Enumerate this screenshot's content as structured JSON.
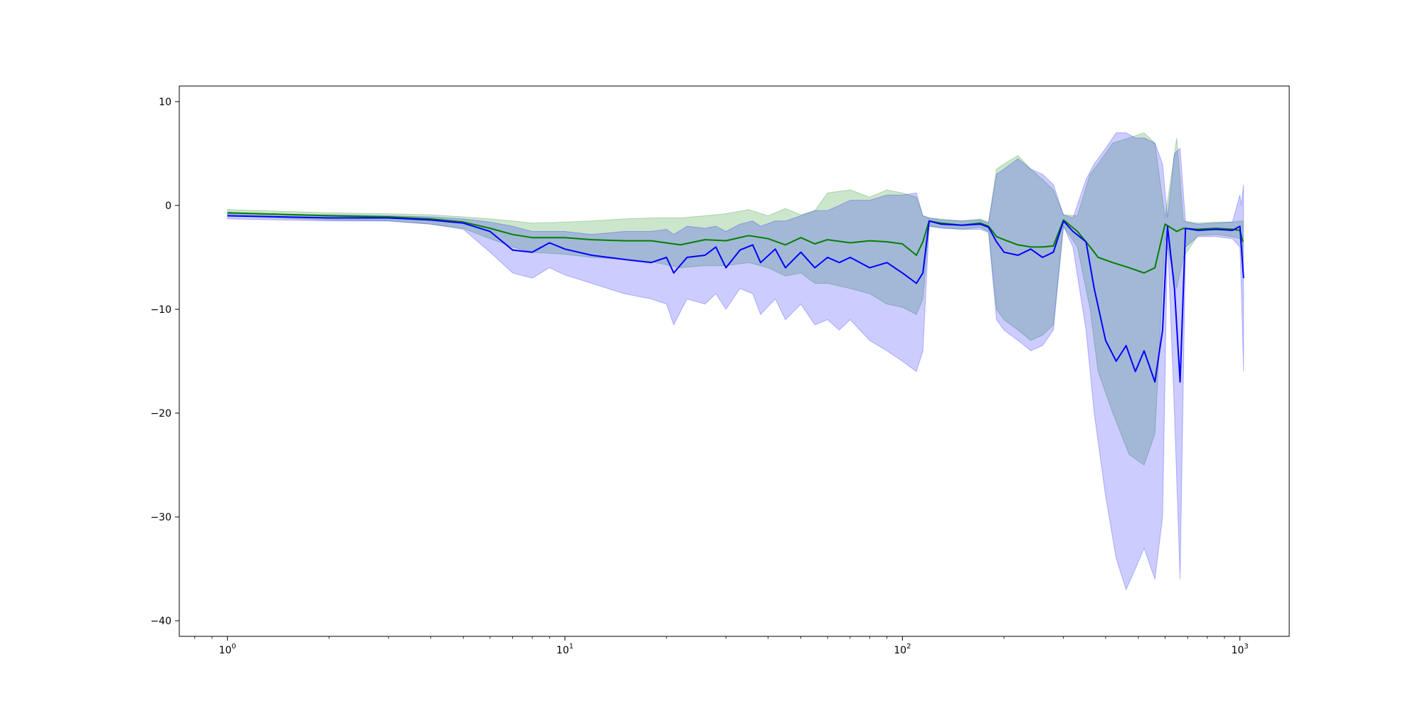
{
  "chart_data": {
    "type": "line",
    "title": "",
    "xlabel": "",
    "ylabel": "",
    "xscale": "log",
    "xlim": [
      0.72,
      1400
    ],
    "ylim": [
      -41.5,
      11.5
    ],
    "grid": false,
    "legend": "none",
    "x_ticks": [
      {
        "value": 1,
        "base": "10",
        "exp": "0"
      },
      {
        "value": 10,
        "base": "10",
        "exp": "1"
      },
      {
        "value": 100,
        "base": "10",
        "exp": "2"
      },
      {
        "value": 1000,
        "base": "10",
        "exp": "3"
      }
    ],
    "y_ticks": [
      10,
      0,
      -10,
      -20,
      -30,
      -40
    ],
    "y_tick_labels": [
      "10",
      "0",
      "−10",
      "−20",
      "−30",
      "−40"
    ],
    "series": [
      {
        "color": "#008000",
        "band_color": "#008000",
        "points": [
          [
            1,
            -0.7,
            -1.0,
            -0.4
          ],
          [
            2,
            -1.0,
            -1.4,
            -0.7
          ],
          [
            3,
            -1.1,
            -1.5,
            -0.8
          ],
          [
            4,
            -1.3,
            -1.8,
            -0.9
          ],
          [
            5,
            -1.6,
            -2.2,
            -1.1
          ],
          [
            6,
            -2.2,
            -3.2,
            -1.3
          ],
          [
            7,
            -2.8,
            -4.0,
            -1.5
          ],
          [
            8,
            -3.1,
            -4.5,
            -1.7
          ],
          [
            10,
            -3.1,
            -4.7,
            -1.6
          ],
          [
            12,
            -3.3,
            -5.0,
            -1.5
          ],
          [
            15,
            -3.4,
            -5.2,
            -1.3
          ],
          [
            18,
            -3.4,
            -5.4,
            -1.2
          ],
          [
            22,
            -3.8,
            -6.0,
            -1.2
          ],
          [
            26,
            -3.3,
            -5.8,
            -1.0
          ],
          [
            30,
            -3.4,
            -5.8,
            -0.8
          ],
          [
            35,
            -2.9,
            -5.5,
            -0.4
          ],
          [
            40,
            -3.2,
            -6.0,
            -1.0
          ],
          [
            45,
            -3.8,
            -6.8,
            -0.3
          ],
          [
            50,
            -3.1,
            -6.5,
            -0.9
          ],
          [
            55,
            -3.7,
            -7.5,
            -0.5
          ],
          [
            60,
            -3.3,
            -7.5,
            1.2
          ],
          [
            70,
            -3.6,
            -8.0,
            1.5
          ],
          [
            80,
            -3.4,
            -8.5,
            0.8
          ],
          [
            90,
            -3.5,
            -9.5,
            1.5
          ],
          [
            100,
            -3.7,
            -9.8,
            1.2
          ],
          [
            110,
            -4.8,
            -10.5,
            0.8
          ],
          [
            115,
            -3.5,
            -9.0,
            -1.0
          ],
          [
            120,
            -1.5,
            -2.0,
            -1.2
          ],
          [
            130,
            -1.7,
            -2.1,
            -1.3
          ],
          [
            150,
            -1.9,
            -2.3,
            -1.5
          ],
          [
            170,
            -1.7,
            -2.1,
            -1.3
          ],
          [
            180,
            -2.0,
            -2.5,
            -1.6
          ],
          [
            190,
            -3.0,
            -10.0,
            3.5
          ],
          [
            200,
            -3.3,
            -11.0,
            4.0
          ],
          [
            220,
            -3.8,
            -12.0,
            4.8
          ],
          [
            240,
            -4.0,
            -13.0,
            3.5
          ],
          [
            260,
            -4.0,
            -12.5,
            2.5
          ],
          [
            280,
            -3.9,
            -11.5,
            1.5
          ],
          [
            300,
            -1.4,
            -2.0,
            -0.9
          ],
          [
            330,
            -2.5,
            -4.0,
            -1.0
          ],
          [
            360,
            -4.0,
            -10.0,
            3.0
          ],
          [
            380,
            -5.0,
            -16.0,
            4.0
          ],
          [
            420,
            -5.5,
            -20.0,
            6.0
          ],
          [
            470,
            -6.0,
            -24.0,
            6.5
          ],
          [
            520,
            -6.5,
            -25.0,
            7.0
          ],
          [
            560,
            -6.0,
            -22.0,
            6.0
          ],
          [
            600,
            -1.8,
            -3.0,
            -1.2
          ],
          [
            650,
            -2.5,
            -8.0,
            6.5
          ],
          [
            680,
            -2.2,
            -5.0,
            -1.5
          ],
          [
            750,
            -2.3,
            -2.9,
            -1.7
          ],
          [
            850,
            -2.2,
            -2.8,
            -1.6
          ],
          [
            950,
            -2.3,
            -3.0,
            -1.6
          ],
          [
            1000,
            -2.4,
            -3.2,
            -1.5
          ],
          [
            1020,
            -3.5,
            -6.0,
            -1.5
          ]
        ]
      },
      {
        "color": "#0000ff",
        "band_color": "#0000ff",
        "points": [
          [
            1,
            -1.0,
            -1.3,
            -0.8
          ],
          [
            2,
            -1.2,
            -1.5,
            -0.9
          ],
          [
            3,
            -1.2,
            -1.5,
            -1.0
          ],
          [
            4,
            -1.4,
            -1.8,
            -1.1
          ],
          [
            5,
            -1.7,
            -2.3,
            -1.3
          ],
          [
            6,
            -2.5,
            -4.5,
            -1.6
          ],
          [
            7,
            -4.3,
            -6.5,
            -2.0
          ],
          [
            8,
            -4.5,
            -7.0,
            -2.5
          ],
          [
            9,
            -3.6,
            -6.0,
            -2.5
          ],
          [
            10,
            -4.2,
            -6.7,
            -2.5
          ],
          [
            12,
            -4.8,
            -7.5,
            -2.8
          ],
          [
            15,
            -5.2,
            -8.5,
            -2.5
          ],
          [
            18,
            -5.5,
            -9.0,
            -2.5
          ],
          [
            20,
            -5.0,
            -9.5,
            -2.3
          ],
          [
            21,
            -6.5,
            -11.5,
            -2.8
          ],
          [
            23,
            -5.0,
            -9.0,
            -2.0
          ],
          [
            26,
            -4.8,
            -9.5,
            -2.2
          ],
          [
            28,
            -4.0,
            -8.5,
            -2.0
          ],
          [
            30,
            -6.0,
            -10.0,
            -2.5
          ],
          [
            33,
            -4.3,
            -8.0,
            -1.8
          ],
          [
            36,
            -3.8,
            -8.5,
            -1.5
          ],
          [
            38,
            -5.5,
            -10.5,
            -2.0
          ],
          [
            42,
            -4.2,
            -9.0,
            -1.5
          ],
          [
            45,
            -6.0,
            -11.0,
            -1.5
          ],
          [
            50,
            -4.5,
            -9.5,
            -1.0
          ],
          [
            55,
            -6.0,
            -11.5,
            -0.5
          ],
          [
            60,
            -5.0,
            -11.0,
            -0.5
          ],
          [
            65,
            -5.5,
            -12.0,
            0.0
          ],
          [
            70,
            -5.0,
            -11.0,
            0.5
          ],
          [
            80,
            -6.0,
            -13.0,
            0.5
          ],
          [
            90,
            -5.5,
            -14.0,
            1.0
          ],
          [
            100,
            -6.5,
            -15.0,
            1.0
          ],
          [
            110,
            -7.5,
            -16.0,
            1.2
          ],
          [
            115,
            -6.5,
            -14.0,
            -1.0
          ],
          [
            120,
            -1.5,
            -2.0,
            -1.2
          ],
          [
            130,
            -1.8,
            -2.2,
            -1.4
          ],
          [
            150,
            -1.9,
            -2.3,
            -1.5
          ],
          [
            170,
            -1.8,
            -2.3,
            -1.4
          ],
          [
            180,
            -2.1,
            -2.6,
            -1.7
          ],
          [
            190,
            -3.5,
            -11.0,
            3.0
          ],
          [
            200,
            -4.5,
            -12.0,
            3.5
          ],
          [
            220,
            -4.8,
            -13.0,
            4.5
          ],
          [
            240,
            -4.2,
            -14.0,
            3.5
          ],
          [
            260,
            -5.0,
            -13.5,
            3.0
          ],
          [
            280,
            -4.5,
            -12.0,
            2.0
          ],
          [
            300,
            -1.5,
            -2.0,
            -0.9
          ],
          [
            320,
            -2.5,
            -4.0,
            -1.2
          ],
          [
            350,
            -3.5,
            -12.0,
            2.5
          ],
          [
            370,
            -8.0,
            -20.0,
            4.0
          ],
          [
            400,
            -13.0,
            -28.0,
            5.5
          ],
          [
            430,
            -15.0,
            -34.0,
            7.0
          ],
          [
            460,
            -13.5,
            -37.0,
            7.0
          ],
          [
            490,
            -16.0,
            -35.0,
            6.5
          ],
          [
            520,
            -14.0,
            -33.0,
            6.5
          ],
          [
            560,
            -17.0,
            -36.0,
            6.0
          ],
          [
            590,
            -12.0,
            -30.0,
            4.0
          ],
          [
            610,
            -2.0,
            -3.0,
            -1.2
          ],
          [
            640,
            -8.0,
            -20.0,
            5.0
          ],
          [
            665,
            -17.0,
            -36.0,
            5.5
          ],
          [
            690,
            -2.2,
            -4.0,
            -1.6
          ],
          [
            750,
            -2.4,
            -3.0,
            -1.8
          ],
          [
            850,
            -2.3,
            -3.0,
            -1.7
          ],
          [
            950,
            -2.4,
            -3.2,
            -1.6
          ],
          [
            1000,
            -2.0,
            -4.0,
            1.0
          ],
          [
            1010,
            -4.0,
            -8.0,
            0.0
          ],
          [
            1025,
            -7.0,
            -16.0,
            2.0
          ]
        ]
      }
    ]
  }
}
